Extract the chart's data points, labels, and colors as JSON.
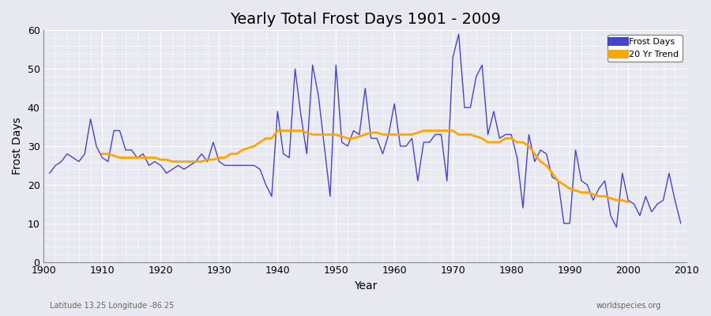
{
  "title": "Yearly Total Frost Days 1901 - 2009",
  "xlabel": "Year",
  "ylabel": "Frost Days",
  "subtitle_left": "Latitude 13.25 Longitude -86.25",
  "subtitle_right": "worldspecies.org",
  "frost_days_color": "#4444cc",
  "trend_color": "#FFA500",
  "bg_color": "#e8e8f0",
  "grid_color": "#ffffff",
  "ylim": [
    0,
    60
  ],
  "xlim": [
    1901,
    2009
  ],
  "years": [
    1901,
    1902,
    1903,
    1904,
    1905,
    1906,
    1907,
    1908,
    1909,
    1910,
    1911,
    1912,
    1913,
    1914,
    1915,
    1916,
    1917,
    1918,
    1919,
    1920,
    1921,
    1922,
    1923,
    1924,
    1925,
    1926,
    1927,
    1928,
    1929,
    1930,
    1931,
    1932,
    1933,
    1934,
    1935,
    1936,
    1937,
    1938,
    1939,
    1940,
    1941,
    1942,
    1943,
    1944,
    1945,
    1946,
    1947,
    1948,
    1949,
    1950,
    1951,
    1952,
    1953,
    1954,
    1955,
    1956,
    1957,
    1958,
    1959,
    1960,
    1961,
    1962,
    1963,
    1964,
    1965,
    1966,
    1967,
    1968,
    1969,
    1970,
    1971,
    1972,
    1973,
    1974,
    1975,
    1976,
    1977,
    1978,
    1979,
    1980,
    1981,
    1982,
    1983,
    1984,
    1985,
    1986,
    1987,
    1988,
    1989,
    1990,
    1991,
    1992,
    1993,
    1994,
    1995,
    1996,
    1997,
    1998,
    1999,
    2000,
    2001,
    2002,
    2003,
    2004,
    2005,
    2006,
    2007,
    2008,
    2009
  ],
  "frost_values": [
    23,
    25,
    26,
    28,
    27,
    26,
    28,
    37,
    30,
    27,
    26,
    34,
    34,
    29,
    29,
    27,
    28,
    25,
    26,
    25,
    23,
    24,
    25,
    24,
    25,
    26,
    28,
    26,
    31,
    26,
    25,
    25,
    25,
    25,
    25,
    25,
    24,
    20,
    17,
    39,
    28,
    27,
    50,
    38,
    28,
    51,
    43,
    30,
    17,
    51,
    31,
    30,
    34,
    33,
    45,
    32,
    32,
    28,
    33,
    41,
    30,
    30,
    32,
    21,
    31,
    31,
    33,
    33,
    21,
    53,
    59,
    40,
    40,
    48,
    51,
    33,
    39,
    32,
    33,
    33,
    27,
    14,
    33,
    26,
    29,
    28,
    22,
    21,
    10,
    10,
    29,
    21,
    20,
    16,
    19,
    21,
    12,
    9,
    23,
    16,
    15,
    12,
    17,
    13,
    15,
    16,
    23,
    16,
    10
  ],
  "trend_years": [
    1910,
    1911,
    1912,
    1913,
    1914,
    1915,
    1916,
    1917,
    1918,
    1919,
    1920,
    1921,
    1922,
    1923,
    1924,
    1925,
    1926,
    1927,
    1928,
    1929,
    1930,
    1931,
    1932,
    1933,
    1934,
    1935,
    1936,
    1937,
    1938,
    1939,
    1940,
    1941,
    1942,
    1943,
    1944,
    1945,
    1946,
    1947,
    1948,
    1949,
    1950,
    1951,
    1952,
    1953,
    1954,
    1955,
    1956,
    1957,
    1958,
    1959,
    1960,
    1961,
    1962,
    1963,
    1964,
    1965,
    1966,
    1967,
    1968,
    1969,
    1970,
    1971,
    1972,
    1973,
    1974,
    1975,
    1976,
    1977,
    1978,
    1979,
    1980,
    1981,
    1982,
    1983,
    1984,
    1985,
    1986,
    1987,
    1988,
    1989,
    1990,
    1991,
    1992,
    1993,
    1994,
    1995,
    1996,
    1997,
    1998,
    1999,
    2000
  ],
  "trend_values": [
    28,
    28,
    27.5,
    27,
    27,
    27,
    27,
    27,
    27,
    27,
    26.5,
    26.5,
    26,
    26,
    26,
    26,
    26,
    26,
    26.5,
    26.5,
    27,
    27,
    28,
    28,
    29,
    29.5,
    30,
    31,
    32,
    32,
    34,
    34,
    34,
    34,
    34,
    33.5,
    33,
    33,
    33,
    33,
    33,
    32.5,
    32,
    32,
    32.5,
    33,
    33.5,
    33.5,
    33,
    33,
    33,
    33,
    33,
    33,
    33.5,
    34,
    34,
    34,
    34,
    34,
    34,
    33,
    33,
    33,
    32.5,
    32,
    31,
    31,
    31,
    32,
    32,
    31,
    31,
    30,
    28,
    26,
    25,
    23,
    21,
    20,
    19,
    18.5,
    18,
    18,
    17.5,
    17,
    17,
    16.5,
    16,
    16,
    15.5
  ]
}
